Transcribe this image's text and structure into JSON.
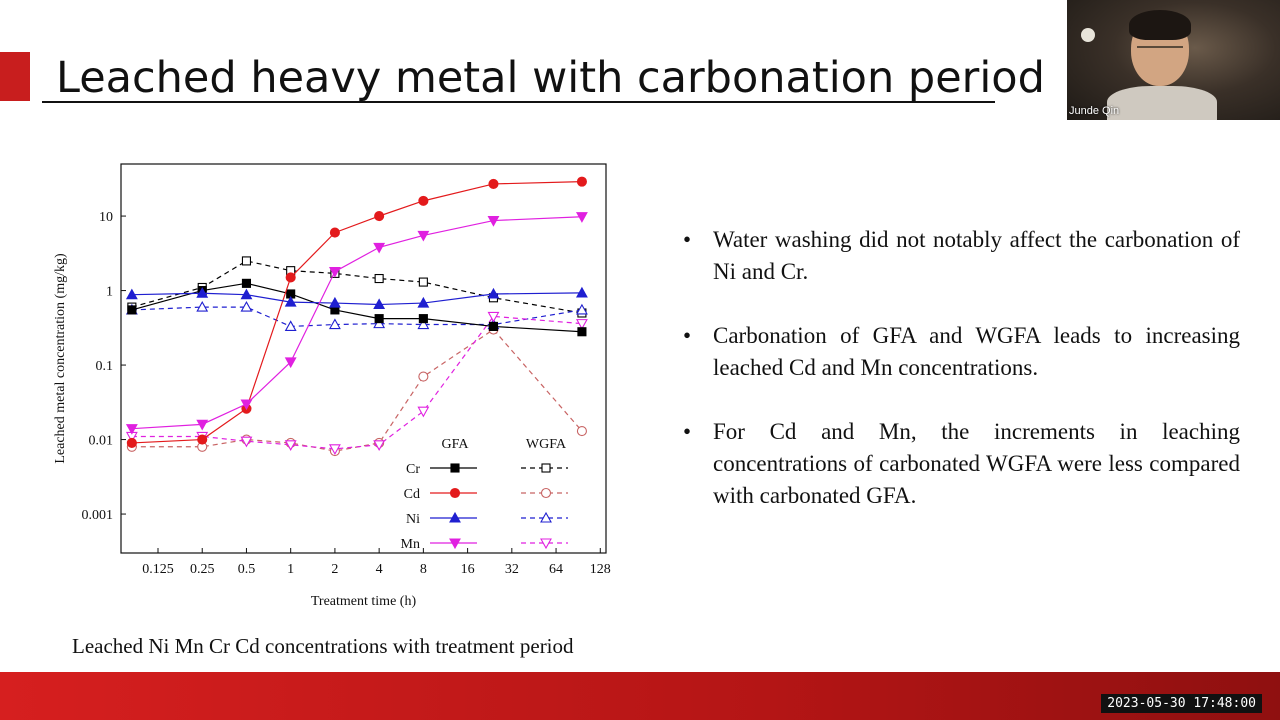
{
  "slide": {
    "title": "Leached heavy metal with carbonation period",
    "caption": "Leached Ni Mn Cr Cd concentrations with treatment period",
    "bullets": [
      "Water washing did not notably affect the carbonation of Ni and Cr.",
      "Carbonation of GFA and WGFA leads to increasing leached Cd and Mn concentrations.",
      "For Cd and Mn, the increments in leaching concentrations of carbonated WGFA were less compared with carbonated GFA."
    ],
    "bullet_char": "•",
    "accent_color": "#c81e1e"
  },
  "webcam": {
    "participant_name": "Junde Qin"
  },
  "timestamp": "2023-05-30 17:48:00",
  "chart_data": {
    "type": "line",
    "xlabel": "Treatment time (h)",
    "ylabel": "Leached metal concentration (mg/kg)",
    "x_scale": "log2",
    "y_scale": "log10",
    "x_ticks": [
      0.125,
      0.25,
      0.5,
      1,
      2,
      4,
      8,
      16,
      32,
      64,
      128
    ],
    "x_tick_labels": [
      "0.125",
      "0.25",
      "0.5",
      "1",
      "2",
      "4",
      "8",
      "16",
      "32",
      "64",
      "128"
    ],
    "y_ticks": [
      0.001,
      0.01,
      0.1,
      1,
      10
    ],
    "y_tick_labels": [
      "0.001",
      "0.01",
      "0.1",
      "1",
      "10"
    ],
    "xlim": [
      0.07,
      140
    ],
    "ylim": [
      0.0003,
      50
    ],
    "legend": {
      "placement": "bottom-right",
      "column_headers": [
        "GFA",
        "WGFA"
      ]
    },
    "x": [
      0.083,
      0.25,
      0.5,
      1,
      2,
      4,
      8,
      24,
      96
    ],
    "series": [
      {
        "name": "Cr",
        "group": "GFA",
        "marker": "square",
        "fill": true,
        "dashed": false,
        "color": "#000000",
        "values": [
          0.55,
          1.0,
          1.25,
          0.9,
          0.55,
          0.42,
          0.42,
          0.33,
          0.28
        ]
      },
      {
        "name": "Cd",
        "group": "GFA",
        "marker": "circle",
        "fill": true,
        "dashed": false,
        "color": "#e31a1c",
        "values": [
          0.009,
          0.01,
          0.026,
          1.5,
          6.0,
          10.0,
          16.0,
          27.0,
          29.0
        ]
      },
      {
        "name": "Ni",
        "group": "GFA",
        "marker": "triangle-up",
        "fill": true,
        "dashed": false,
        "color": "#1f1fd0",
        "values": [
          0.88,
          0.92,
          0.88,
          0.7,
          0.68,
          0.65,
          0.68,
          0.9,
          0.93
        ]
      },
      {
        "name": "Mn",
        "group": "GFA",
        "marker": "triangle-down",
        "fill": true,
        "dashed": false,
        "color": "#e020e0",
        "values": [
          0.014,
          0.016,
          0.03,
          0.11,
          1.8,
          3.8,
          5.5,
          8.7,
          9.8
        ]
      },
      {
        "name": "Cr",
        "group": "WGFA",
        "marker": "square",
        "fill": false,
        "dashed": true,
        "color": "#000000",
        "values": [
          0.6,
          1.1,
          2.5,
          1.85,
          1.7,
          1.45,
          1.3,
          0.8,
          0.5
        ]
      },
      {
        "name": "Cd",
        "group": "WGFA",
        "marker": "circle",
        "fill": false,
        "dashed": true,
        "color": "#c86464",
        "values": [
          0.008,
          0.008,
          0.01,
          0.009,
          0.007,
          0.009,
          0.07,
          0.3,
          0.013
        ]
      },
      {
        "name": "Ni",
        "group": "WGFA",
        "marker": "triangle-up",
        "fill": false,
        "dashed": true,
        "color": "#1f1fd0",
        "values": [
          0.55,
          0.6,
          0.6,
          0.33,
          0.35,
          0.36,
          0.35,
          0.35,
          0.55
        ]
      },
      {
        "name": "Mn",
        "group": "WGFA",
        "marker": "triangle-down",
        "fill": false,
        "dashed": true,
        "color": "#e020e0",
        "values": [
          0.011,
          0.011,
          0.0095,
          0.0085,
          0.0075,
          0.0085,
          0.024,
          0.45,
          0.36
        ]
      }
    ]
  }
}
